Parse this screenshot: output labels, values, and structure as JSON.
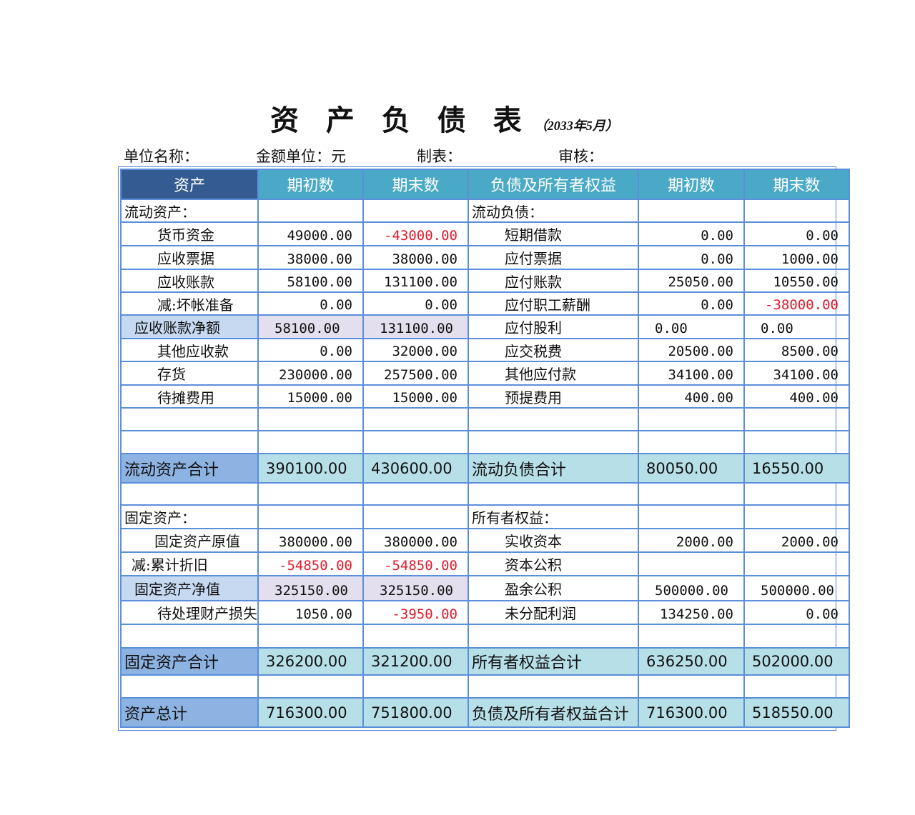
{
  "title": "资 产 负 债 表",
  "subtitle": "（2033年5月）",
  "meta": {
    "unit_name": "单位名称：",
    "currency": "金额单位：元",
    "prepared_by": "制表：",
    "reviewed_by": "审核："
  },
  "colors": {
    "header_dark": "#345c93",
    "header": "#4aa9c6",
    "total_label": "#8db3e2",
    "total_value": "#b7dfe8",
    "negative": "#e0192b",
    "border": "#5b8fd9"
  },
  "headers": [
    "资产",
    "期初数",
    "期末数",
    "负债及所有者权益",
    "期初数",
    "期末数"
  ],
  "rows": [
    {
      "type": "section",
      "cells": [
        "流动资产：",
        "",
        "",
        "流动负债：",
        "",
        ""
      ]
    },
    {
      "type": "item",
      "cells": [
        "货币资金",
        "49000.00",
        "-43000.00",
        "短期借款",
        "0.00",
        "0.00"
      ]
    },
    {
      "type": "item",
      "cells": [
        "应收票据",
        "38000.00",
        "38000.00",
        "应付票据",
        "0.00",
        "1000.00"
      ]
    },
    {
      "type": "item",
      "cells": [
        "应收账款",
        "58100.00",
        "131100.00",
        "应付账款",
        "25050.00",
        "10550.00"
      ]
    },
    {
      "type": "item",
      "cells": [
        "减:坏帐准备",
        "0.00",
        "0.00",
        "应付职工薪酬",
        "0.00",
        "-38000.00"
      ]
    },
    {
      "type": "net",
      "cells": [
        "应收账款净额",
        "58100.00",
        "131100.00",
        "应付股利",
        "0.00",
        "0.00"
      ]
    },
    {
      "type": "item",
      "cells": [
        "其他应收款",
        "0.00",
        "32000.00",
        "应交税费",
        "20500.00",
        "8500.00"
      ]
    },
    {
      "type": "item",
      "cells": [
        "存货",
        "230000.00",
        "257500.00",
        "其他应付款",
        "34100.00",
        "34100.00"
      ]
    },
    {
      "type": "item",
      "cells": [
        "待摊费用",
        "15000.00",
        "15000.00",
        "预提费用",
        "400.00",
        "400.00"
      ]
    },
    {
      "type": "blank",
      "cells": [
        "",
        "",
        "",
        "",
        "",
        ""
      ]
    },
    {
      "type": "blank",
      "cells": [
        "",
        "",
        "",
        "",
        "",
        ""
      ]
    },
    {
      "type": "total",
      "cells": [
        "流动资产合计",
        "390100.00",
        "430600.00",
        "流动负债合计",
        "80050.00",
        "16550.00"
      ]
    },
    {
      "type": "blank",
      "cells": [
        "",
        "",
        "",
        "",
        "",
        ""
      ]
    },
    {
      "type": "section",
      "cells": [
        "固定资产：",
        "",
        "",
        "所有者权益：",
        "",
        ""
      ]
    },
    {
      "type": "item",
      "cells": [
        "固定资产原值",
        "380000.00",
        "380000.00",
        "实收资本",
        "2000.00",
        "2000.00"
      ]
    },
    {
      "type": "item",
      "cells": [
        "减:累计折旧",
        "-54850.00",
        "-54850.00",
        "资本公积",
        "",
        ""
      ]
    },
    {
      "type": "net",
      "cells": [
        "固定资产净值",
        "325150.00",
        "325150.00",
        "盈余公积",
        "500000.00",
        "500000.00"
      ]
    },
    {
      "type": "item",
      "cells": [
        "待处理财产损失",
        "1050.00",
        "-3950.00",
        "未分配利润",
        "134250.00",
        "0.00"
      ]
    },
    {
      "type": "blank",
      "cells": [
        "",
        "",
        "",
        "",
        "",
        ""
      ]
    },
    {
      "type": "total",
      "cells": [
        "固定资产合计",
        "326200.00",
        "321200.00",
        "所有者权益合计",
        "636250.00",
        "502000.00"
      ]
    },
    {
      "type": "blank",
      "cells": [
        "",
        "",
        "",
        "",
        "",
        ""
      ]
    },
    {
      "type": "total",
      "cells": [
        "资产总计",
        "716300.00",
        "751800.00",
        "负债及所有者权益合计",
        "716300.00",
        "518550.00"
      ]
    }
  ]
}
